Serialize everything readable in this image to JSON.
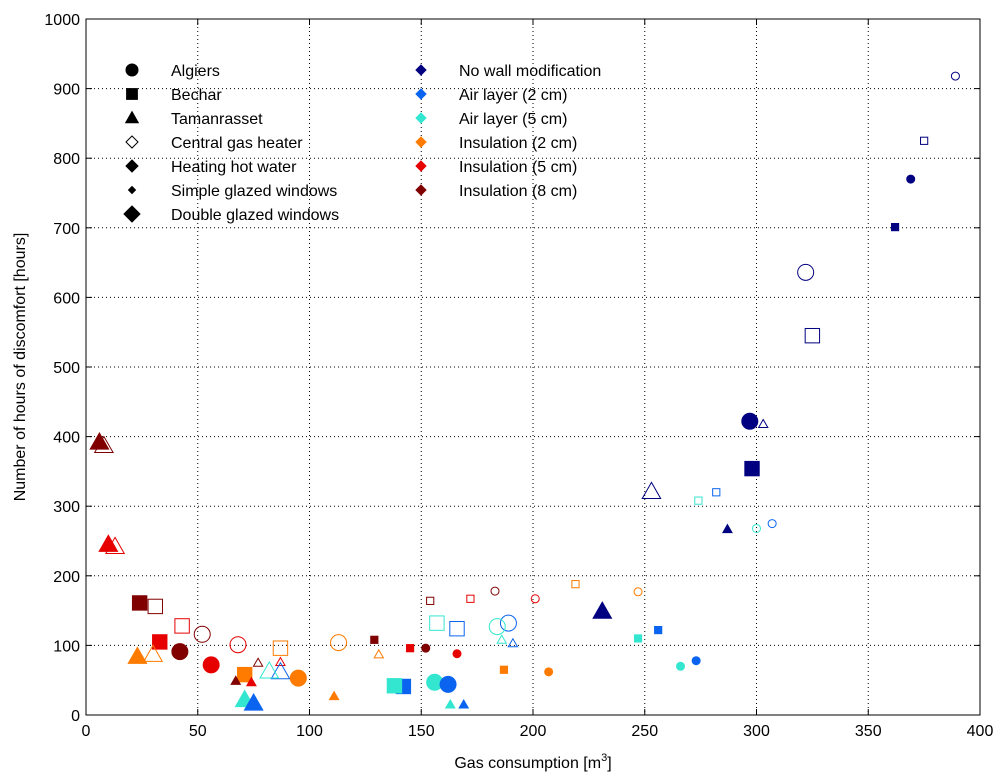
{
  "chart_data": {
    "type": "scatter",
    "xlabel": "Gas consumption [m",
    "xlabel_sup": "3",
    "xlabel_end": "]",
    "ylabel": "Number of hours of discomfort [hours]",
    "xlim": [
      0,
      400
    ],
    "ylim": [
      0,
      1000
    ],
    "xticks": [
      "0",
      "50",
      "100",
      "150",
      "200",
      "250",
      "300",
      "350",
      "400"
    ],
    "yticks": [
      "0",
      "100",
      "200",
      "300",
      "400",
      "500",
      "600",
      "700",
      "800",
      "900",
      "1000"
    ],
    "grid": true,
    "legend_shapes": [
      {
        "label": "Algiers",
        "marker": "circle-filled-medium"
      },
      {
        "label": "Bechar",
        "marker": "square-filled-medium"
      },
      {
        "label": "Tamanrasset",
        "marker": "triangle-filled-medium"
      },
      {
        "label": "Central gas heater",
        "marker": "diamond-open-medium"
      },
      {
        "label": "Heating hot water",
        "marker": "diamond-filled-medium"
      },
      {
        "label": "Simple glazed windows",
        "marker": "diamond-filled-small"
      },
      {
        "label": "Double glazed windows",
        "marker": "diamond-filled-large"
      }
    ],
    "legend_colors": [
      {
        "label": "No wall modification",
        "color": "#000080"
      },
      {
        "label": "Air layer (2 cm)",
        "color": "#0a64f0"
      },
      {
        "label": "Air layer (5 cm)",
        "color": "#33e6d0"
      },
      {
        "label": "Insulation (2 cm)",
        "color": "#ff7b00"
      },
      {
        "label": "Insulation (5 cm)",
        "color": "#e60000"
      },
      {
        "label": "Insulation (8 cm)",
        "color": "#800000"
      }
    ],
    "points": [
      {
        "city": "Algiers",
        "heater": "central",
        "window": "simple",
        "wall": "none",
        "x": 389,
        "y": 918
      },
      {
        "city": "Bechar",
        "heater": "central",
        "window": "simple",
        "wall": "none",
        "x": 375,
        "y": 825
      },
      {
        "city": "Algiers",
        "heater": "hotwater",
        "window": "simple",
        "wall": "none",
        "x": 369,
        "y": 770
      },
      {
        "city": "Bechar",
        "heater": "hotwater",
        "window": "simple",
        "wall": "none",
        "x": 362,
        "y": 701
      },
      {
        "city": "Algiers",
        "heater": "central",
        "window": "double",
        "wall": "none",
        "x": 322,
        "y": 636
      },
      {
        "city": "Bechar",
        "heater": "central",
        "window": "double",
        "wall": "none",
        "x": 325,
        "y": 545
      },
      {
        "city": "Algiers",
        "heater": "hotwater",
        "window": "double",
        "wall": "none",
        "x": 297,
        "y": 422
      },
      {
        "city": "Tamanrasset",
        "heater": "central",
        "window": "simple",
        "wall": "none",
        "x": 303,
        "y": 418
      },
      {
        "city": "Bechar",
        "heater": "hotwater",
        "window": "double",
        "wall": "none",
        "x": 298,
        "y": 354
      },
      {
        "city": "Tamanrasset",
        "heater": "central",
        "window": "double",
        "wall": "none",
        "x": 253,
        "y": 321
      },
      {
        "city": "Bechar",
        "heater": "central",
        "window": "simple",
        "wall": "air2",
        "x": 282,
        "y": 320
      },
      {
        "city": "Bechar",
        "heater": "central",
        "window": "simple",
        "wall": "air5",
        "x": 274,
        "y": 308
      },
      {
        "city": "Algiers",
        "heater": "central",
        "window": "simple",
        "wall": "air2",
        "x": 307,
        "y": 275
      },
      {
        "city": "Algiers",
        "heater": "central",
        "window": "simple",
        "wall": "air5",
        "x": 300,
        "y": 268
      },
      {
        "city": "Tamanrasset",
        "heater": "hotwater",
        "window": "simple",
        "wall": "none",
        "x": 287,
        "y": 267
      },
      {
        "city": "Tamanrasset",
        "heater": "hotwater",
        "window": "double",
        "wall": "none",
        "x": 231,
        "y": 149
      },
      {
        "city": "Bechar",
        "heater": "hotwater",
        "window": "simple",
        "wall": "air2",
        "x": 256,
        "y": 122
      },
      {
        "city": "Bechar",
        "heater": "hotwater",
        "window": "simple",
        "wall": "air5",
        "x": 247,
        "y": 110
      },
      {
        "city": "Algiers",
        "heater": "hotwater",
        "window": "simple",
        "wall": "air2",
        "x": 273,
        "y": 78
      },
      {
        "city": "Algiers",
        "heater": "hotwater",
        "window": "simple",
        "wall": "air5",
        "x": 266,
        "y": 70
      },
      {
        "city": "Bechar",
        "heater": "central",
        "window": "simple",
        "wall": "ins2",
        "x": 219,
        "y": 188
      },
      {
        "city": "Algiers",
        "heater": "central",
        "window": "simple",
        "wall": "ins2",
        "x": 247,
        "y": 177
      },
      {
        "city": "Algiers",
        "heater": "central",
        "window": "simple",
        "wall": "ins8",
        "x": 183,
        "y": 178
      },
      {
        "city": "Algiers",
        "heater": "central",
        "window": "simple",
        "wall": "ins5",
        "x": 201,
        "y": 167
      },
      {
        "city": "Bechar",
        "heater": "central",
        "window": "simple",
        "wall": "ins5",
        "x": 172,
        "y": 167
      },
      {
        "city": "Bechar",
        "heater": "central",
        "window": "simple",
        "wall": "ins8",
        "x": 154,
        "y": 164
      },
      {
        "city": "Algiers",
        "heater": "central",
        "window": "double",
        "wall": "air2",
        "x": 189,
        "y": 132
      },
      {
        "city": "Bechar",
        "heater": "central",
        "window": "double",
        "wall": "air5",
        "x": 157,
        "y": 132
      },
      {
        "city": "Algiers",
        "heater": "central",
        "window": "double",
        "wall": "air5",
        "x": 184,
        "y": 127
      },
      {
        "city": "Bechar",
        "heater": "central",
        "window": "double",
        "wall": "air2",
        "x": 166,
        "y": 124
      },
      {
        "city": "Tamanrasset",
        "heater": "central",
        "window": "simple",
        "wall": "air2",
        "x": 191,
        "y": 103
      },
      {
        "city": "Tamanrasset",
        "heater": "central",
        "window": "simple",
        "wall": "air5",
        "x": 186,
        "y": 108
      },
      {
        "city": "Bechar",
        "heater": "hotwater",
        "window": "simple",
        "wall": "ins8",
        "x": 129,
        "y": 108
      },
      {
        "city": "Bechar",
        "heater": "hotwater",
        "window": "simple",
        "wall": "ins5",
        "x": 145,
        "y": 96
      },
      {
        "city": "Algiers",
        "heater": "hotwater",
        "window": "simple",
        "wall": "ins8",
        "x": 152,
        "y": 96
      },
      {
        "city": "Algiers",
        "heater": "hotwater",
        "window": "simple",
        "wall": "ins5",
        "x": 166,
        "y": 88
      },
      {
        "city": "Tamanrasset",
        "heater": "central",
        "window": "simple",
        "wall": "ins2",
        "x": 131,
        "y": 87
      },
      {
        "city": "Algiers",
        "heater": "central",
        "window": "double",
        "wall": "ins2",
        "x": 113,
        "y": 104
      },
      {
        "city": "Bechar",
        "heater": "hotwater",
        "window": "simple",
        "wall": "ins2",
        "x": 187,
        "y": 65
      },
      {
        "city": "Algiers",
        "heater": "hotwater",
        "window": "simple",
        "wall": "ins2",
        "x": 207,
        "y": 62
      },
      {
        "city": "Bechar",
        "heater": "hotwater",
        "window": "double",
        "wall": "air2",
        "x": 142,
        "y": 41
      },
      {
        "city": "Bechar",
        "heater": "hotwater",
        "window": "double",
        "wall": "air5",
        "x": 138,
        "y": 42
      },
      {
        "city": "Algiers",
        "heater": "hotwater",
        "window": "double",
        "wall": "air5",
        "x": 156,
        "y": 47
      },
      {
        "city": "Algiers",
        "heater": "hotwater",
        "window": "double",
        "wall": "air2",
        "x": 162,
        "y": 44
      },
      {
        "city": "Tamanrasset",
        "heater": "hotwater",
        "window": "simple",
        "wall": "air5",
        "x": 163,
        "y": 15
      },
      {
        "city": "Tamanrasset",
        "heater": "hotwater",
        "window": "simple",
        "wall": "air2",
        "x": 169,
        "y": 15
      },
      {
        "city": "Tamanrasset",
        "heater": "hotwater",
        "window": "simple",
        "wall": "ins2",
        "x": 111,
        "y": 27
      },
      {
        "city": "Bechar",
        "heater": "central",
        "window": "double",
        "wall": "ins2",
        "x": 87,
        "y": 96
      },
      {
        "city": "Tamanrasset",
        "heater": "central",
        "window": "simple",
        "wall": "ins5",
        "x": 87,
        "y": 76
      },
      {
        "city": "Tamanrasset",
        "heater": "central",
        "window": "simple",
        "wall": "ins8",
        "x": 77,
        "y": 75
      },
      {
        "city": "Tamanrasset",
        "heater": "central",
        "window": "double",
        "wall": "air2",
        "x": 87,
        "y": 62
      },
      {
        "city": "Tamanrasset",
        "heater": "central",
        "window": "double",
        "wall": "air5",
        "x": 82,
        "y": 63
      },
      {
        "city": "Algiers",
        "heater": "central",
        "window": "double",
        "wall": "ins5",
        "x": 68,
        "y": 101
      },
      {
        "city": "Algiers",
        "heater": "central",
        "window": "double",
        "wall": "ins8",
        "x": 52,
        "y": 116
      },
      {
        "city": "Bechar",
        "heater": "central",
        "window": "double",
        "wall": "ins5",
        "x": 43,
        "y": 128
      },
      {
        "city": "Bechar",
        "heater": "central",
        "window": "double",
        "wall": "ins8",
        "x": 31,
        "y": 156
      },
      {
        "city": "Bechar",
        "heater": "hotwater",
        "window": "double",
        "wall": "ins8",
        "x": 24,
        "y": 161
      },
      {
        "city": "Bechar",
        "heater": "hotwater",
        "window": "double",
        "wall": "ins5",
        "x": 33,
        "y": 105
      },
      {
        "city": "Algiers",
        "heater": "hotwater",
        "window": "double",
        "wall": "ins8",
        "x": 42,
        "y": 91
      },
      {
        "city": "Tamanrasset",
        "heater": "central",
        "window": "double",
        "wall": "ins2",
        "x": 30,
        "y": 87
      },
      {
        "city": "Tamanrasset",
        "heater": "hotwater",
        "window": "double",
        "wall": "ins2",
        "x": 23,
        "y": 84
      },
      {
        "city": "Algiers",
        "heater": "hotwater",
        "window": "double",
        "wall": "ins5",
        "x": 56,
        "y": 72
      },
      {
        "city": "Bechar",
        "heater": "hotwater",
        "window": "double",
        "wall": "ins2",
        "x": 71,
        "y": 58
      },
      {
        "city": "Algiers",
        "heater": "hotwater",
        "window": "double",
        "wall": "ins2",
        "x": 95,
        "y": 53
      },
      {
        "city": "Tamanrasset",
        "heater": "hotwater",
        "window": "simple",
        "wall": "ins8",
        "x": 67,
        "y": 49
      },
      {
        "city": "Tamanrasset",
        "heater": "hotwater",
        "window": "simple",
        "wall": "ins5",
        "x": 74,
        "y": 47
      },
      {
        "city": "Tamanrasset",
        "heater": "hotwater",
        "window": "double",
        "wall": "air5",
        "x": 71,
        "y": 22
      },
      {
        "city": "Tamanrasset",
        "heater": "hotwater",
        "window": "double",
        "wall": "air2",
        "x": 75,
        "y": 17
      },
      {
        "city": "Tamanrasset",
        "heater": "central",
        "window": "double",
        "wall": "ins8",
        "x": 8,
        "y": 387
      },
      {
        "city": "Tamanrasset",
        "heater": "hotwater",
        "window": "double",
        "wall": "ins8",
        "x": 6,
        "y": 392
      },
      {
        "city": "Tamanrasset",
        "heater": "central",
        "window": "double",
        "wall": "ins5",
        "x": 13,
        "y": 242
      },
      {
        "city": "Tamanrasset",
        "heater": "hotwater",
        "window": "double",
        "wall": "ins5",
        "x": 10,
        "y": 245
      }
    ],
    "wall_colors": {
      "none": "#000080",
      "air2": "#0a64f0",
      "air5": "#33e6d0",
      "ins2": "#ff7b00",
      "ins5": "#e60000",
      "ins8": "#800000"
    }
  }
}
